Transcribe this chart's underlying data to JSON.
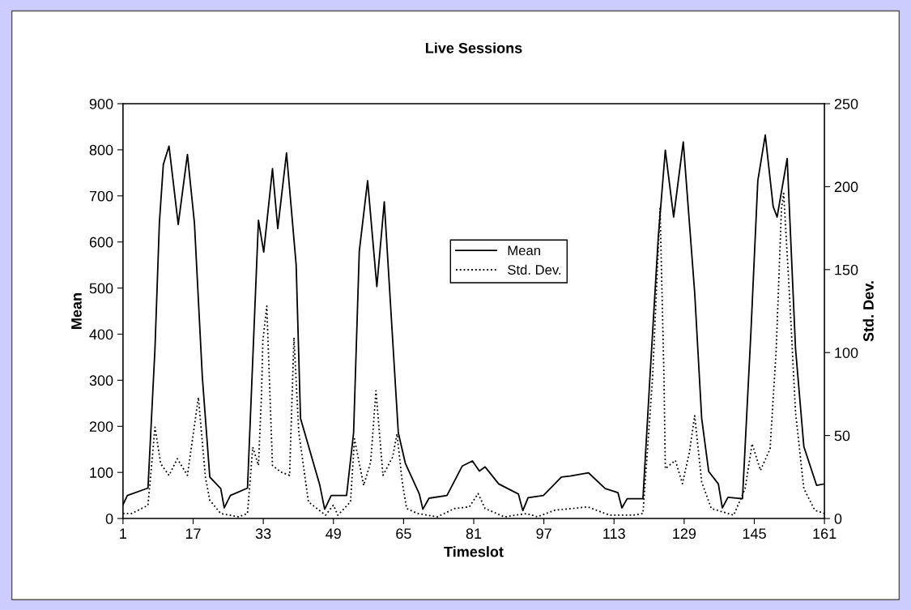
{
  "chart_data": {
    "type": "line",
    "title": "Live Sessions",
    "xlabel": "Timeslot",
    "ylabel": "Mean",
    "y2label": "Std. Dev.",
    "xlim": [
      1,
      161
    ],
    "xticks": [
      1,
      17,
      33,
      49,
      65,
      81,
      97,
      113,
      129,
      145,
      161
    ],
    "ylim": [
      0,
      900
    ],
    "yticks": [
      0,
      100,
      200,
      300,
      400,
      500,
      600,
      700,
      800,
      900
    ],
    "y2lim": [
      0,
      250
    ],
    "y2ticks": [
      0,
      50,
      100,
      150,
      200,
      250
    ],
    "grid": false,
    "legend": "center",
    "marker": "none",
    "series": [
      {
        "name": "Mean",
        "color": "#000000",
        "line_style": "solid",
        "x": [
          1,
          2,
          6.7,
          8.3,
          9.3,
          10.2,
          11.5,
          13.6,
          15.7,
          17.3,
          19.1,
          20.8,
          23.3,
          24.1,
          25.5,
          29.4,
          31.9,
          33.1,
          35.1,
          36.3,
          38.3,
          40.5,
          41.5,
          45.9,
          47,
          48.5,
          52,
          53.6,
          54.9,
          56.8,
          58.9,
          60.6,
          63.8,
          65.4,
          68.6,
          69.4,
          70.8,
          74.9,
          78.4,
          80.7,
          82.3,
          83.6,
          86.7,
          91.2,
          92.2,
          93.4,
          96.9,
          101,
          103,
          107.2,
          111,
          113.9,
          114.8,
          116,
          119.6,
          121.2,
          123.1,
          124.7,
          126.6,
          128.8,
          131.4,
          133,
          134.6,
          136.8,
          137.7,
          139,
          142.3,
          144.2,
          145.8,
          147.5,
          149.3,
          150.2,
          152.5,
          154.4,
          156.3,
          159.2,
          161
        ],
        "values": [
          30,
          50,
          66,
          369,
          641,
          768,
          808,
          638,
          790,
          641,
          307,
          90,
          65,
          23,
          50,
          66,
          647,
          578,
          759,
          629,
          793,
          550,
          217,
          72,
          20,
          50,
          50,
          186,
          580,
          733,
          503,
          687,
          186,
          120,
          53,
          20,
          44,
          50,
          114,
          125,
          103,
          112,
          75,
          53,
          17,
          45,
          50,
          90,
          92,
          99,
          65,
          56,
          23,
          43,
          43,
          307,
          611,
          799,
          654,
          817,
          490,
          217,
          102,
          75,
          23,
          46,
          43,
          399,
          733,
          832,
          677,
          654,
          781,
          369,
          156,
          72,
          75
        ]
      },
      {
        "name": "Std. Dev.",
        "color": "#000000",
        "line_style": "dotted",
        "axis": "y2",
        "x": [
          1,
          3,
          6.7,
          8.3,
          9.6,
          11.5,
          13.4,
          15.7,
          18.2,
          19.8,
          20.8,
          23.3,
          27.4,
          29.4,
          30.6,
          31.9,
          32.6,
          32.9,
          33.8,
          35.1,
          37,
          39,
          40,
          41.1,
          43.3,
          47.2,
          49,
          50,
          52.9,
          53.8,
          55.9,
          57.5,
          58.7,
          60.3,
          62.5,
          63.5,
          64.7,
          65.7,
          68.2,
          72.7,
          76.6,
          80,
          82,
          83.6,
          88,
          93.1,
          95.5,
          99.5,
          107,
          109,
          112,
          117.4,
          119.6,
          121.8,
          123.5,
          124.4,
          124.7,
          127,
          128.6,
          130.2,
          131.4,
          133,
          135.2,
          140.3,
          142.9,
          144.5,
          146.4,
          148.6,
          150,
          151.2,
          151.7,
          153,
          154.4,
          156.3,
          158.8,
          161
        ],
        "values": [
          3,
          3,
          8,
          55,
          33,
          26,
          36,
          26,
          73,
          25,
          11,
          3,
          1,
          3,
          43,
          32,
          75,
          107,
          128,
          32,
          28,
          26,
          109,
          52,
          10,
          2,
          8,
          2,
          10,
          48,
          20,
          34,
          77,
          26,
          37,
          51,
          22,
          6,
          3,
          1,
          6,
          7,
          15,
          6,
          1,
          3,
          1,
          5,
          7,
          5,
          2,
          2,
          3,
          85,
          187,
          85,
          30,
          35,
          21,
          40,
          62,
          22,
          6,
          2,
          18,
          45,
          29,
          42,
          102,
          187,
          196,
          136,
          64,
          18,
          5,
          3
        ]
      }
    ]
  }
}
